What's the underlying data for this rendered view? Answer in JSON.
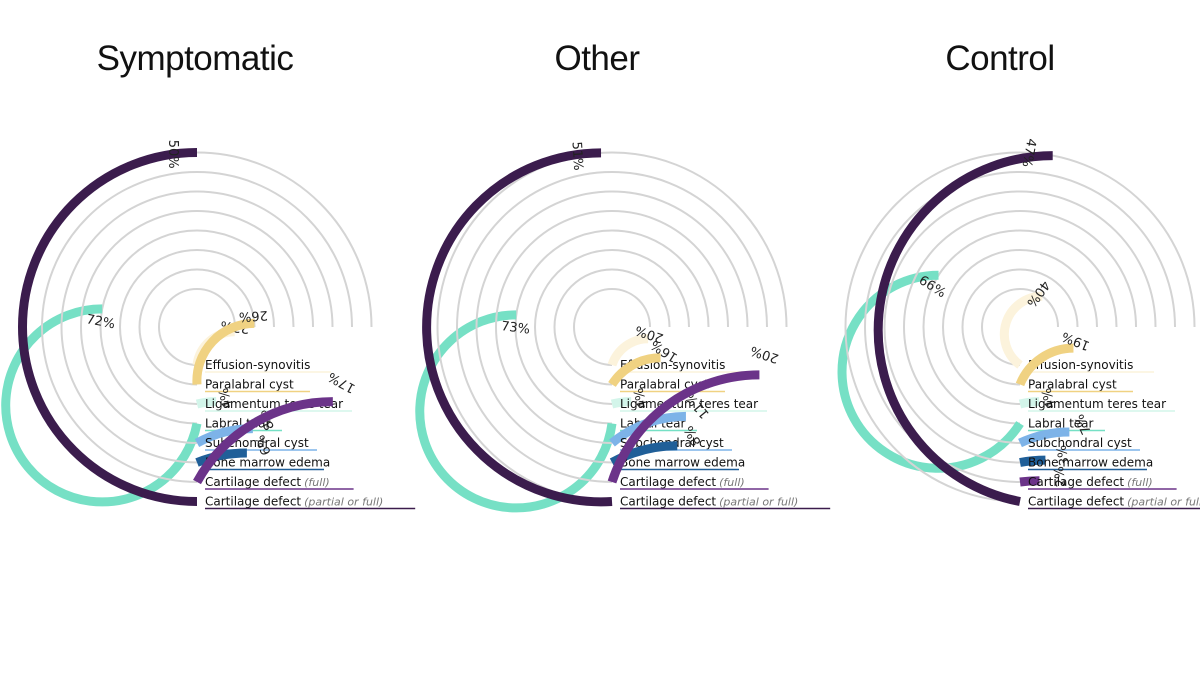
{
  "chart_data": {
    "type": "radial-bar",
    "categories": [
      {
        "label": "Effusion-synovitis",
        "note": "",
        "color": "#fcf3dc"
      },
      {
        "label": "Paralabral cyst",
        "note": "",
        "color": "#f0d282"
      },
      {
        "label": "Ligamentum teres tear",
        "note": "",
        "color": "#d3f5ea"
      },
      {
        "label": "Labral tear",
        "note": "",
        "color": "#76e0c5"
      },
      {
        "label": "Subchondral cyst",
        "note": "",
        "color": "#7db3e8"
      },
      {
        "label": "Bone marrow edema",
        "note": "",
        "color": "#205f98"
      },
      {
        "label": "Cartilage defect",
        "note": "(full)",
        "color": "#6b3389"
      },
      {
        "label": "Cartilage defect",
        "note": "(partial or full)",
        "color": "#3b1c4d"
      }
    ],
    "track_color": "#d4d4d4",
    "unit": "%",
    "max_value": 75,
    "panels": [
      {
        "title": "Symptomatic",
        "values": [
          23,
          26,
          4,
          72,
          8,
          6,
          17,
          50
        ]
      },
      {
        "title": "Other",
        "values": [
          20,
          16,
          4,
          73,
          11,
          8,
          20,
          51
        ]
      },
      {
        "title": "Control",
        "values": [
          40,
          19,
          4,
          66,
          7,
          3,
          2,
          47
        ]
      }
    ]
  }
}
